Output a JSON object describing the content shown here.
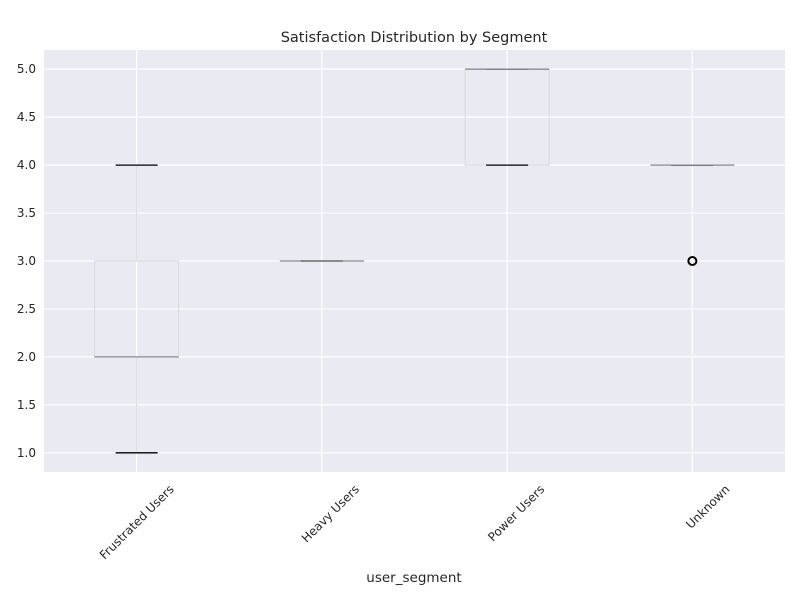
{
  "chart_data": {
    "type": "box",
    "title": "Satisfaction Distribution by Segment",
    "xlabel": "user_segment",
    "ylabel": "",
    "ylim": [
      0.8,
      5.2
    ],
    "yticks": [
      1.0,
      1.5,
      2.0,
      2.5,
      3.0,
      3.5,
      4.0,
      4.5,
      5.0
    ],
    "ytick_labels": [
      "1.0",
      "1.5",
      "2.0",
      "2.5",
      "3.0",
      "3.5",
      "4.0",
      "4.5",
      "5.0"
    ],
    "grid": true,
    "categories": [
      "Frustrated Users",
      "Heavy Users",
      "Power Users",
      "Unknown"
    ],
    "boxes": [
      {
        "category": "Frustrated Users",
        "whisker_low": 1.0,
        "q1": 2.0,
        "median": 2.0,
        "q3": 3.0,
        "whisker_high": 4.0,
        "outliers": []
      },
      {
        "category": "Heavy Users",
        "whisker_low": 3.0,
        "q1": 3.0,
        "median": 3.0,
        "q3": 3.0,
        "whisker_high": 3.0,
        "outliers": []
      },
      {
        "category": "Power Users",
        "whisker_low": 4.0,
        "q1": 4.0,
        "median": 5.0,
        "q3": 5.0,
        "whisker_high": 5.0,
        "outliers": []
      },
      {
        "category": "Unknown",
        "whisker_low": 4.0,
        "q1": 4.0,
        "median": 4.0,
        "q3": 4.0,
        "whisker_high": 4.0,
        "outliers": [
          3.0
        ]
      }
    ],
    "colors": {
      "background": "#eaeaf2",
      "grid": "#ffffff",
      "box": "#d9d9d9",
      "median": "#8c8c8c",
      "whisker": "#d9d9d9",
      "cap": "#000000",
      "outlier": "#000000"
    }
  }
}
